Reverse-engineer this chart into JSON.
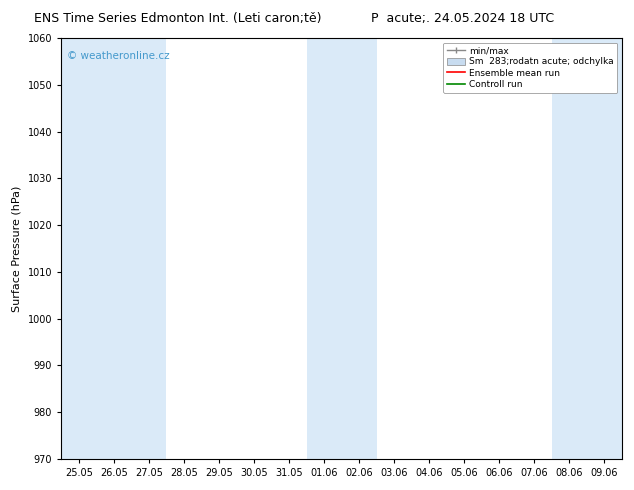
{
  "title": "ENS Time Series Edmonton Int. (Leti caron;tě)",
  "title_right": "P  acute;. 24.05.2024 18 UTC",
  "ylabel": "Surface Pressure (hPa)",
  "ymin": 970,
  "ymax": 1060,
  "ytick_step": 10,
  "background_color": "#ffffff",
  "plot_bg_color": "#ffffff",
  "watermark": "© weatheronline.cz",
  "watermark_color": "#4499cc",
  "legend_labels": [
    "min/max",
    "Sm  283;rodatn acute; odchylka",
    "Ensemble mean run",
    "Controll run"
  ],
  "legend_colors_line": [
    "#aaaaaa",
    "#c8dcf0",
    "#ff0000",
    "#008800"
  ],
  "x_tick_labels": [
    "25.05",
    "26.05",
    "27.05",
    "28.05",
    "29.05",
    "30.05",
    "31.05",
    "01.06",
    "02.06",
    "03.06",
    "04.06",
    "05.06",
    "06.06",
    "07.06",
    "08.06",
    "09.06"
  ],
  "shaded_columns": [
    0,
    1,
    2,
    7,
    8,
    14,
    15
  ],
  "shaded_color": "#daeaf8",
  "title_fontsize": 9,
  "axis_fontsize": 8,
  "tick_fontsize": 7
}
